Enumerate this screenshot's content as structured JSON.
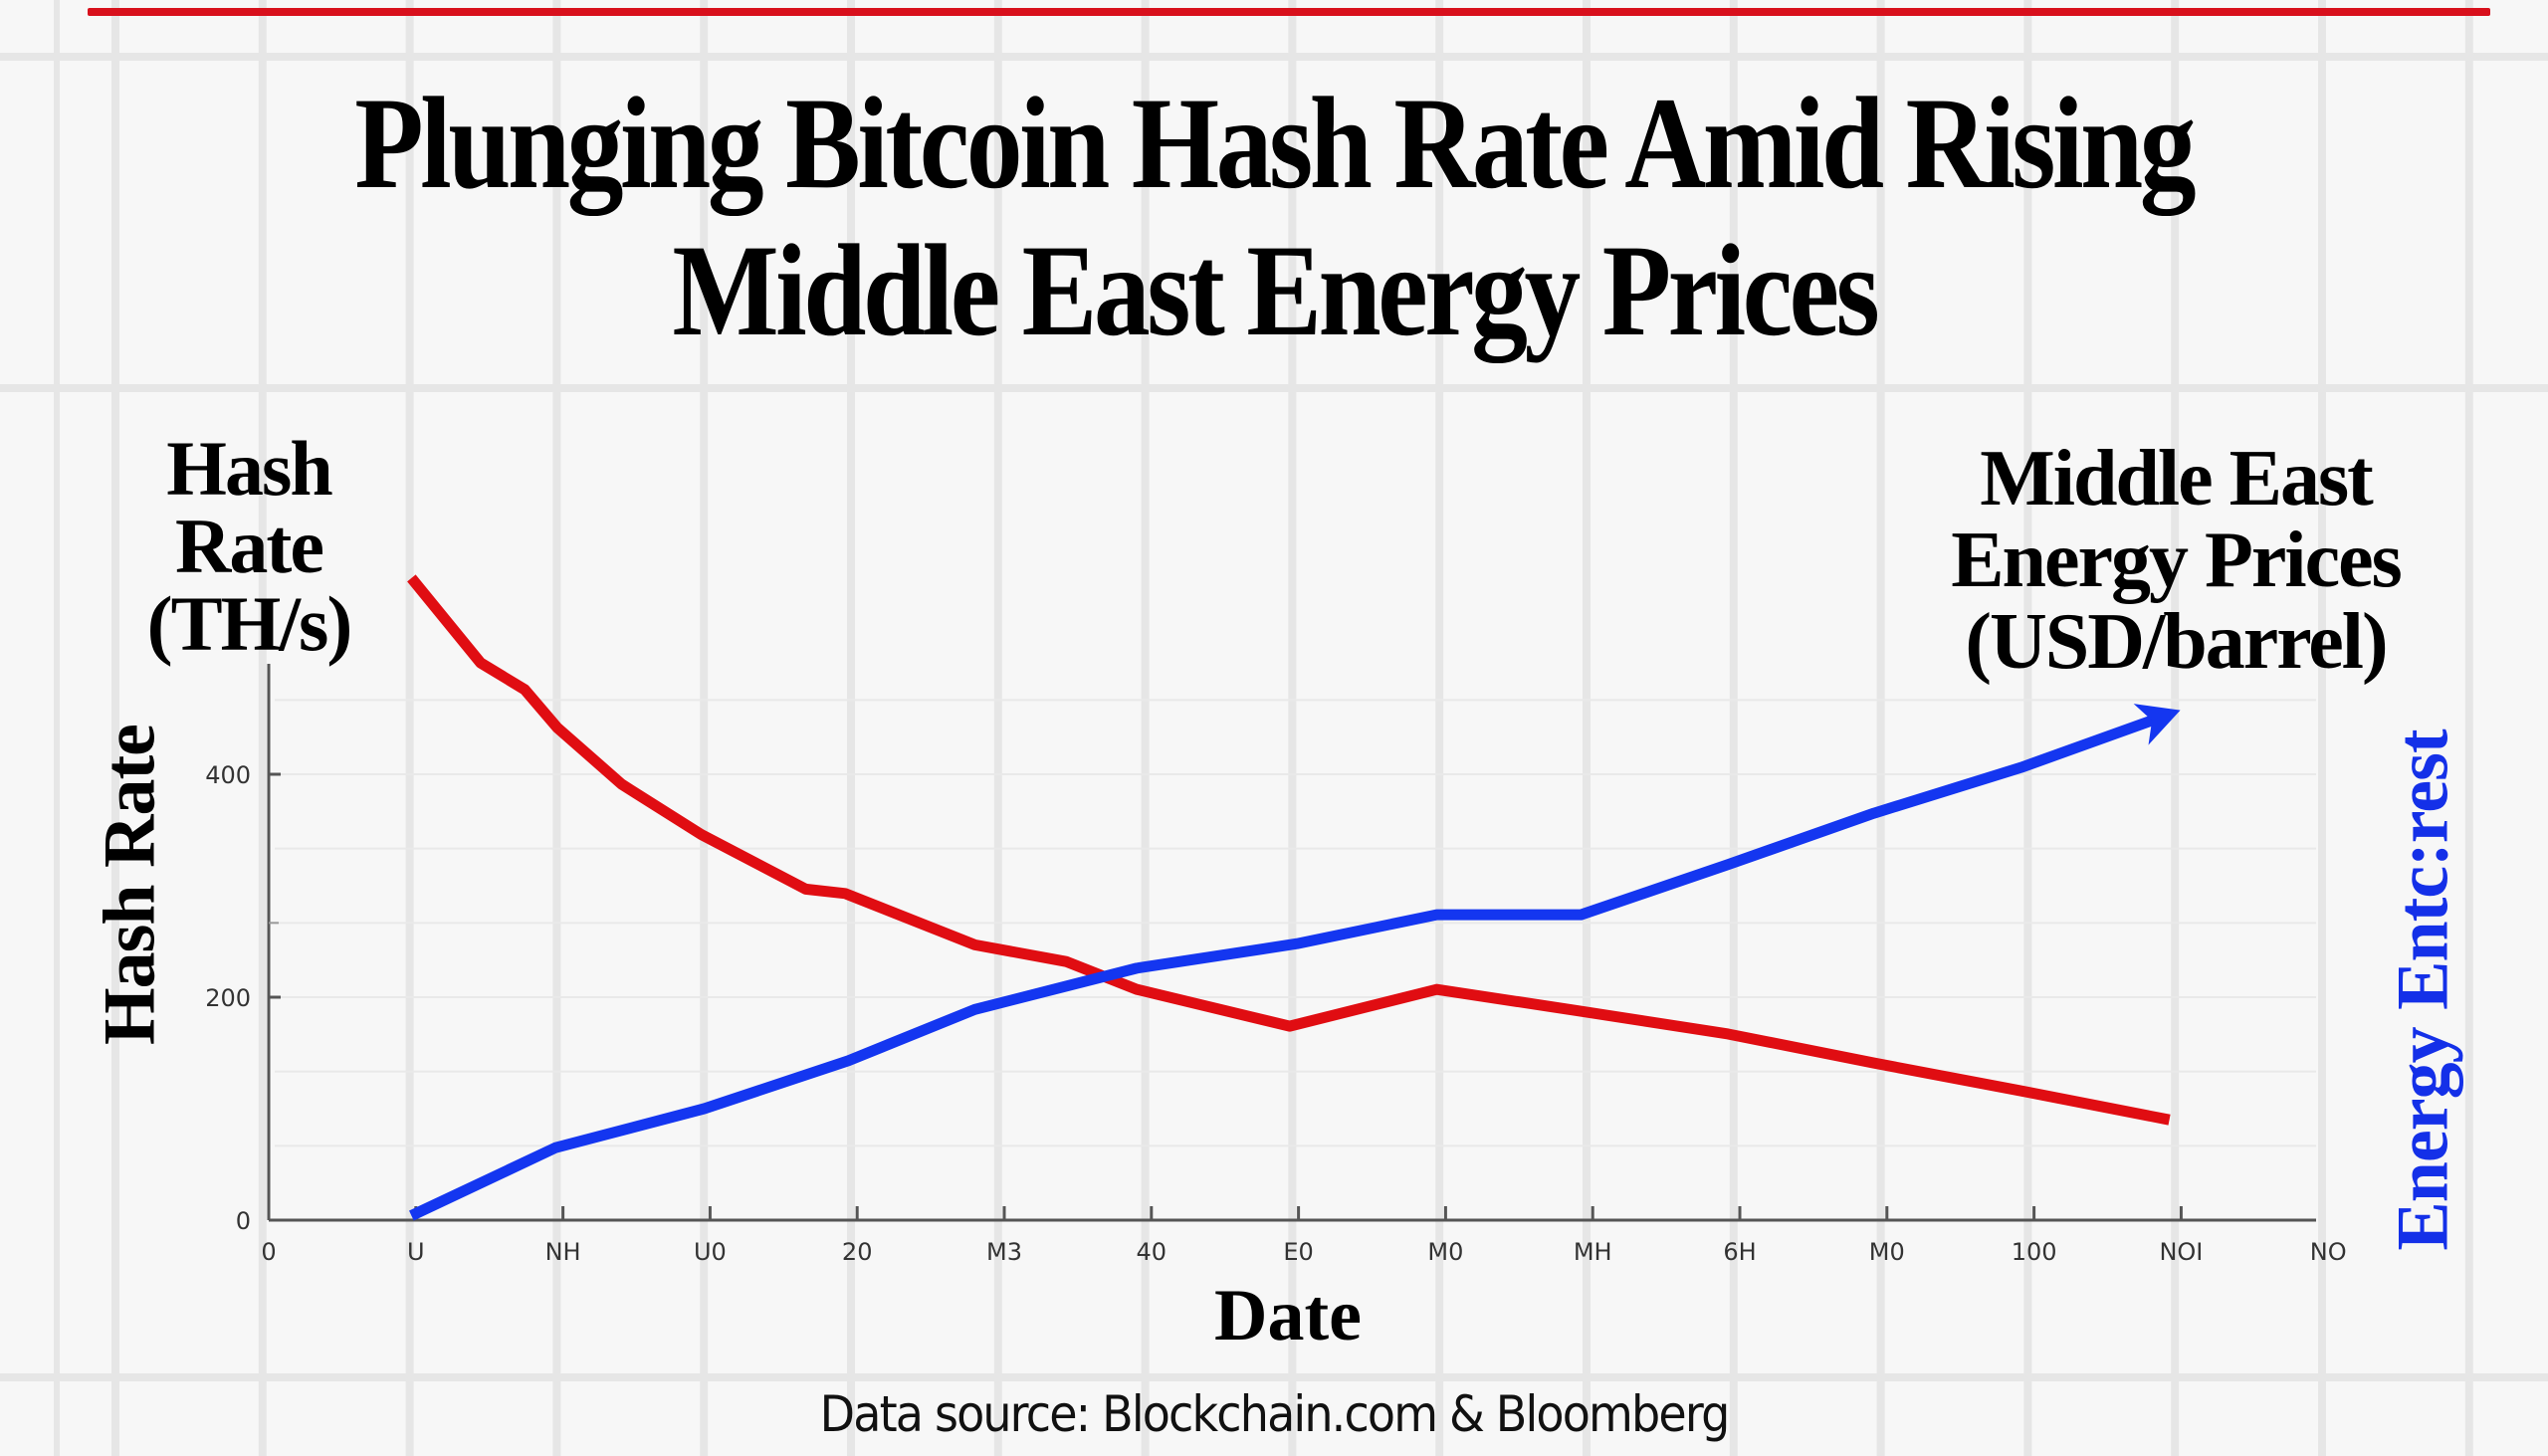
{
  "title": {
    "line1": "Plunging Bitcoin Hash Rate Amid Rising",
    "line2": "Middle East Energy Prices"
  },
  "left_header": [
    "Hash",
    "Rate",
    "(TH/s)"
  ],
  "right_header": [
    "Middle East",
    "Energy Prices",
    "(USD/barrel)"
  ],
  "footer": {
    "source": "Data source: Blockchain.com & Bloomberg"
  },
  "colors": {
    "accent_rule": "#d8101c",
    "hash_rate": "#e00d12",
    "energy": "#1436f0",
    "axis": "#555555",
    "grid": "#e6e6e6"
  },
  "chart_data": {
    "type": "line",
    "title": "Plunging Bitcoin Hash Rate Amid Rising Middle East Energy Prices",
    "xlabel": "Date",
    "ylabel": "Hash Rate",
    "y2label": "Energy Entc:rest",
    "x_tick_labels": [
      "0",
      "U",
      "NH",
      "U0",
      "20",
      "M3",
      "40",
      "E0",
      "M0",
      "MH",
      "6H",
      "M0",
      "100",
      "NOI",
      "NO"
    ],
    "y_ticks": [
      0,
      200,
      400
    ],
    "ylim": [
      0,
      500
    ],
    "xlim": [
      0,
      14
    ],
    "grid": true,
    "legend": "none",
    "series": [
      {
        "name": "Hash Rate (TH/s)",
        "color": "#e00d12",
        "points": [
          [
            0.97,
            576
          ],
          [
            1.44,
            500
          ],
          [
            1.74,
            476
          ],
          [
            1.96,
            442
          ],
          [
            2.4,
            391
          ],
          [
            2.94,
            346
          ],
          [
            3.65,
            297
          ],
          [
            3.92,
            293
          ],
          [
            4.8,
            247
          ],
          [
            5.42,
            232
          ],
          [
            5.9,
            207
          ],
          [
            6.94,
            174
          ],
          [
            7.94,
            207
          ],
          [
            8.89,
            188
          ],
          [
            9.92,
            167
          ],
          [
            10.91,
            141
          ],
          [
            11.91,
            116
          ],
          [
            12.92,
            90
          ]
        ]
      },
      {
        "name": "Middle East Energy Prices (USD/barrel)",
        "color": "#1436f0",
        "arrow_end": true,
        "points": [
          [
            0.97,
            4
          ],
          [
            1.95,
            65
          ],
          [
            2.96,
            100
          ],
          [
            3.94,
            143
          ],
          [
            4.8,
            189
          ],
          [
            5.9,
            226
          ],
          [
            6.99,
            248
          ],
          [
            7.94,
            274
          ],
          [
            8.92,
            274
          ],
          [
            9.92,
            319
          ],
          [
            10.91,
            365
          ],
          [
            11.91,
            406
          ],
          [
            12.88,
            452
          ]
        ]
      }
    ]
  }
}
